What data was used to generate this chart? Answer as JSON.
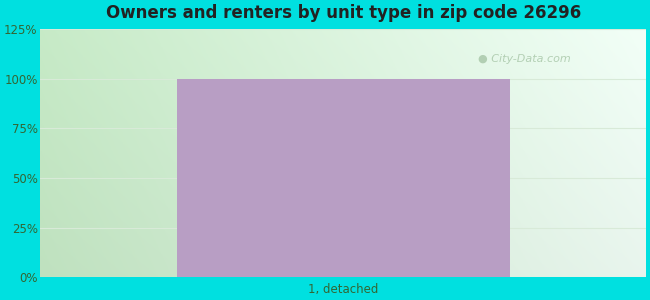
{
  "title": "Owners and renters by unit type in zip code 26296",
  "categories": [
    "1, detached"
  ],
  "values": [
    100
  ],
  "bar_color": "#b89ec4",
  "bar_width": 0.55,
  "ylim": [
    0,
    125
  ],
  "yticks": [
    0,
    25,
    50,
    75,
    100,
    125
  ],
  "ytick_labels": [
    "0%",
    "25%",
    "50%",
    "75%",
    "100%",
    "125%"
  ],
  "background_color": "#00e0e0",
  "grid_color": "#d8ead8",
  "title_color": "#222222",
  "tick_color": "#336633",
  "watermark_text": "City-Data.com",
  "watermark_color": "#aac8aa",
  "title_fontsize": 12,
  "tick_fontsize": 8.5,
  "plot_left_color": "#c8eac8",
  "plot_right_color": "#f0fff8"
}
